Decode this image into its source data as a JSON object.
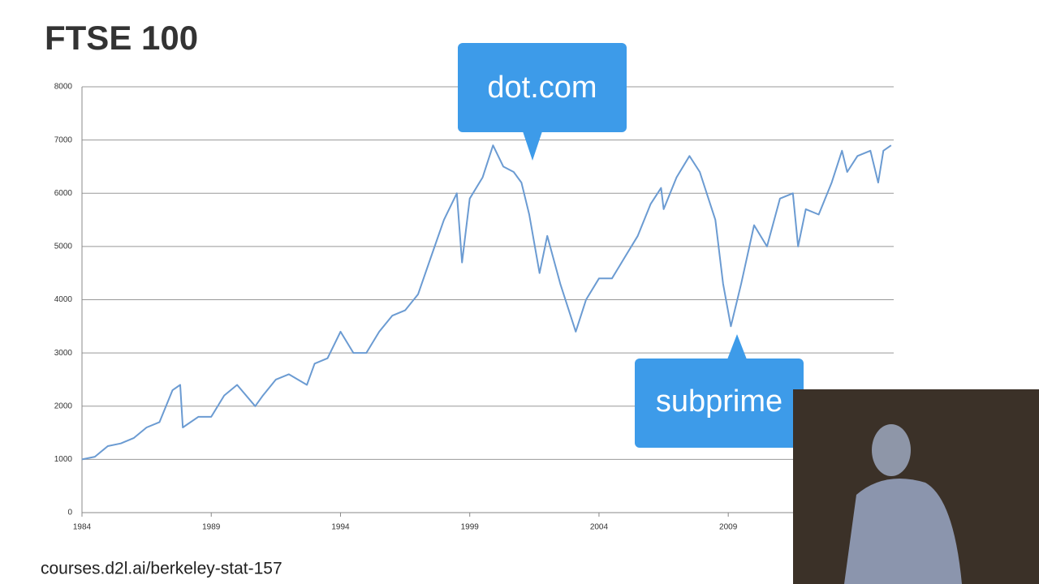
{
  "chart_data": {
    "type": "line",
    "title": "FTSE 100",
    "x": [
      1984.0,
      1984.5,
      1985.0,
      1985.5,
      1986.0,
      1986.5,
      1987.0,
      1987.5,
      1987.8,
      1987.9,
      1988.5,
      1989.0,
      1989.5,
      1990.0,
      1990.7,
      1991.0,
      1991.5,
      1992.0,
      1992.7,
      1993.0,
      1993.5,
      1994.0,
      1994.5,
      1995.0,
      1995.5,
      1996.0,
      1996.5,
      1997.0,
      1997.5,
      1998.0,
      1998.5,
      1998.7,
      1999.0,
      1999.5,
      1999.9,
      2000.3,
      2000.7,
      2001.0,
      2001.3,
      2001.7,
      2002.0,
      2002.5,
      2003.1,
      2003.5,
      2004.0,
      2004.5,
      2005.0,
      2005.5,
      2006.0,
      2006.4,
      2006.5,
      2007.0,
      2007.5,
      2007.9,
      2008.5,
      2008.8,
      2009.1,
      2009.5,
      2010.0,
      2010.5,
      2011.0,
      2011.5,
      2011.7,
      2012.0,
      2012.5,
      2013.0,
      2013.4,
      2013.6,
      2014.0,
      2014.5,
      2014.8,
      2015.0,
      2015.3
    ],
    "values": [
      1000,
      1050,
      1250,
      1300,
      1400,
      1600,
      1700,
      2300,
      2400,
      1600,
      1800,
      1800,
      2200,
      2400,
      2000,
      2200,
      2500,
      2600,
      2400,
      2800,
      2900,
      3400,
      3000,
      3000,
      3400,
      3700,
      3800,
      4100,
      4800,
      5500,
      6000,
      4700,
      5900,
      6300,
      6900,
      6500,
      6400,
      6200,
      5600,
      4500,
      5200,
      4300,
      3400,
      4000,
      4400,
      4400,
      4800,
      5200,
      5800,
      6100,
      5700,
      6300,
      6700,
      6400,
      5500,
      4300,
      3500,
      4300,
      5400,
      5000,
      5900,
      6000,
      5000,
      5700,
      5600,
      6200,
      6800,
      6400,
      6700,
      6800,
      6200,
      6800,
      6900
    ],
    "color": "#6b9bd2",
    "xlim": [
      1984,
      2015.4
    ],
    "xticks": [
      1984,
      1989,
      1994,
      1999,
      2004,
      2009
    ],
    "ylim": [
      0,
      8000
    ],
    "yticks": [
      0,
      1000,
      2000,
      3000,
      4000,
      5000,
      6000,
      7000,
      8000
    ],
    "grid": true,
    "annotations": [
      "dot.com",
      "subprime"
    ]
  },
  "footer": "courses.d2l.ai/berkeley-stat-157"
}
